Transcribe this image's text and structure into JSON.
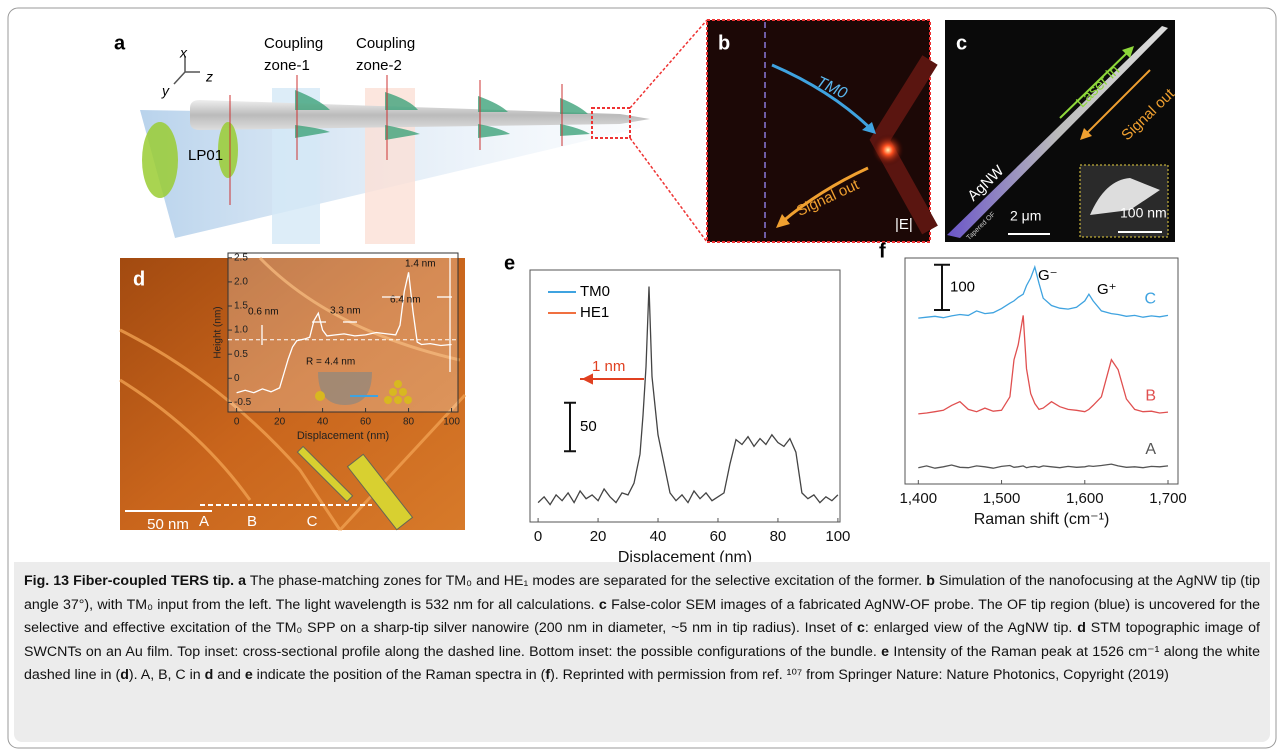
{
  "figure": {
    "a": {
      "label": "a",
      "axis_x": "x",
      "axis_y": "y",
      "axis_z": "z",
      "zone_1": [
        "Coupling",
        "zone-1"
      ],
      "zone_2": [
        "Coupling",
        "zone-2"
      ],
      "mode": "LP01",
      "legend": [
        "TM0",
        "HE1"
      ]
    },
    "b": {
      "label": "b",
      "mode": "TM0",
      "signal": "Signal out",
      "field": "|E|"
    },
    "c": {
      "label": "c",
      "laser": "Laser in",
      "signal": "Signal out",
      "wire": "AgNW",
      "fiber": "Tapered OF",
      "scale_bar": "2 μm",
      "inset_scale_bar": "100 nm"
    },
    "d": {
      "label": "d",
      "points": [
        "A",
        "B",
        "C"
      ],
      "scale_bar": "50 nm"
    },
    "caption": [
      "Fig. 13 Fiber-coupled TERS tip. a",
      " The phase-matching zones for TM₀ and HE₁ modes are separated for the selective excitation of the former. ",
      "b",
      " Simulation of the nanofocusing at the AgNW tip (tip angle 37°), with TM₀ input from the left. The light wavelength is 532 nm for all calculations. ",
      "c",
      " False-color SEM images of a fabricated AgNW-OF probe. The OF tip region (blue) is uncovered for the selective and effective excitation of the TM₀ SPP on a sharp-tip silver nanowire (200 nm in diameter, ~5 nm in tip radius). Inset of ",
      "c",
      ": enlarged view of the AgNW tip. ",
      "d",
      " STM topographic image of SWCNTs on an Au film. Top inset: cross-sectional profile along the dashed line. Bottom inset: the possible configurations of the bundle. ",
      "e",
      " Intensity of the Raman peak at 1526 cm⁻¹ along the white dashed line in (",
      "d",
      "). A, B, C in ",
      "d",
      " and ",
      "e",
      " indicate the position of the Raman spectra in (",
      "f",
      "). Reprinted with permission from ref. ¹⁰⁷ from Springer Nature: Nature Photonics, Copyright (2019)"
    ]
  },
  "chart_data": [
    {
      "type": "line",
      "xlabel": "Displacement (nm)",
      "ylabel": "Height (nm)",
      "xlim": [
        -4,
        103
      ],
      "ylim": [
        -0.7,
        2.6
      ],
      "xticks": [
        0,
        20,
        40,
        60,
        80,
        100
      ],
      "yticks": [
        -0.5,
        0,
        0.5,
        {
          "value": 1,
          "label": "1.0"
        },
        1.5,
        {
          "value": 2,
          "label": "2.0"
        },
        2.5
      ],
      "reference_line": 0.8,
      "annotations": [
        "0.6 nm",
        "3.3 nm",
        "6.4 nm",
        "1.4 nm",
        "R = 4.4 nm"
      ],
      "x": [
        0,
        4,
        8,
        12,
        16,
        20,
        22,
        24,
        26,
        28,
        30,
        32,
        34,
        36,
        38,
        40,
        42,
        46,
        50,
        55,
        60,
        65,
        70,
        74,
        76,
        78,
        80,
        82,
        84,
        86,
        90,
        95,
        100
      ],
      "series": [
        {
          "color": "#ffffff",
          "values": [
            -0.3,
            -0.25,
            -0.3,
            -0.22,
            -0.28,
            -0.2,
            0.1,
            0.4,
            0.65,
            0.78,
            0.8,
            0.82,
            0.85,
            1.2,
            1.35,
            1.0,
            0.88,
            0.9,
            0.92,
            0.88,
            0.9,
            0.95,
            0.92,
            0.9,
            1.1,
            1.8,
            2.2,
            1.4,
            0.75,
            0.7,
            0.72,
            0.68,
            0.7
          ]
        }
      ]
    },
    {
      "type": "line",
      "panel_label": "e",
      "xlabel": "Displacement (nm)",
      "xlim": [
        -2.7,
        100.7
      ],
      "ylim": [
        0,
        260
      ],
      "xticks": [
        0,
        20,
        40,
        60,
        80,
        100
      ],
      "scale_bar": 50,
      "annotations": [
        "1 nm"
      ],
      "x": [
        0,
        2,
        4,
        6,
        8,
        10,
        12,
        14,
        16,
        18,
        20,
        22,
        24,
        26,
        28,
        30,
        32,
        34,
        35,
        36,
        37,
        38,
        39,
        40,
        42,
        44,
        46,
        48,
        50,
        52,
        54,
        56,
        58,
        60,
        62,
        64,
        66,
        68,
        70,
        72,
        74,
        76,
        78,
        80,
        82,
        84,
        86,
        88,
        90,
        92,
        94,
        96,
        98,
        100
      ],
      "series": [
        {
          "color": "#444444",
          "values": [
            20,
            26,
            18,
            28,
            22,
            30,
            20,
            32,
            24,
            28,
            22,
            34,
            26,
            20,
            30,
            28,
            40,
            70,
            110,
            160,
            243,
            150,
            120,
            90,
            60,
            30,
            22,
            28,
            20,
            32,
            24,
            30,
            22,
            26,
            30,
            60,
            85,
            80,
            88,
            78,
            86,
            80,
            90,
            82,
            78,
            86,
            72,
            30,
            24,
            28,
            20,
            26,
            22,
            28
          ]
        }
      ]
    },
    {
      "type": "line",
      "panel_label": "f",
      "xlabel": "Raman shift (cm⁻¹)",
      "xlim": [
        1384,
        1712
      ],
      "ylim": [
        0,
        500
      ],
      "xticks": [
        {
          "value": 1400,
          "label": "1,400"
        },
        {
          "value": 1500,
          "label": "1,500"
        },
        {
          "value": 1600,
          "label": "1,600"
        },
        {
          "value": 1700,
          "label": "1,700"
        }
      ],
      "scale_bar": 100,
      "annotations": [
        "G⁻",
        "G⁺"
      ],
      "x": [
        1400,
        1410,
        1420,
        1430,
        1440,
        1450,
        1460,
        1470,
        1480,
        1490,
        1500,
        1510,
        1515,
        1520,
        1526,
        1530,
        1535,
        1540,
        1545,
        1550,
        1560,
        1570,
        1580,
        1590,
        1600,
        1605,
        1610,
        1620,
        1632,
        1640,
        1650,
        1660,
        1670,
        1680,
        1690,
        1700
      ],
      "series": [
        {
          "name": "C",
          "color": "#3fa3e0",
          "values": [
            367,
            369,
            371,
            368,
            372,
            375,
            373,
            383,
            377,
            379,
            388,
            400,
            405,
            413,
            420,
            439,
            456,
            480,
            444,
            411,
            395,
            389,
            387,
            391,
            405,
            420,
            405,
            383,
            377,
            375,
            371,
            373,
            369,
            372,
            370,
            373
          ]
        },
        {
          "name": "B",
          "color": "#e05050",
          "values": [
            155,
            157,
            160,
            163,
            174,
            182,
            165,
            160,
            168,
            161,
            163,
            193,
            275,
            308,
            373,
            255,
            200,
            178,
            165,
            168,
            182,
            171,
            165,
            163,
            160,
            165,
            174,
            193,
            275,
            253,
            188,
            165,
            160,
            161,
            157,
            159
          ]
        },
        {
          "name": "A",
          "color": "#555555",
          "values": [
            36,
            40,
            35,
            38,
            42,
            37,
            36,
            40,
            38,
            35,
            39,
            41,
            37,
            38,
            40,
            36,
            38,
            39,
            37,
            40,
            38,
            36,
            39,
            37,
            38,
            40,
            39,
            41,
            44,
            40,
            37,
            38,
            36,
            39,
            38,
            40
          ]
        }
      ]
    }
  ]
}
